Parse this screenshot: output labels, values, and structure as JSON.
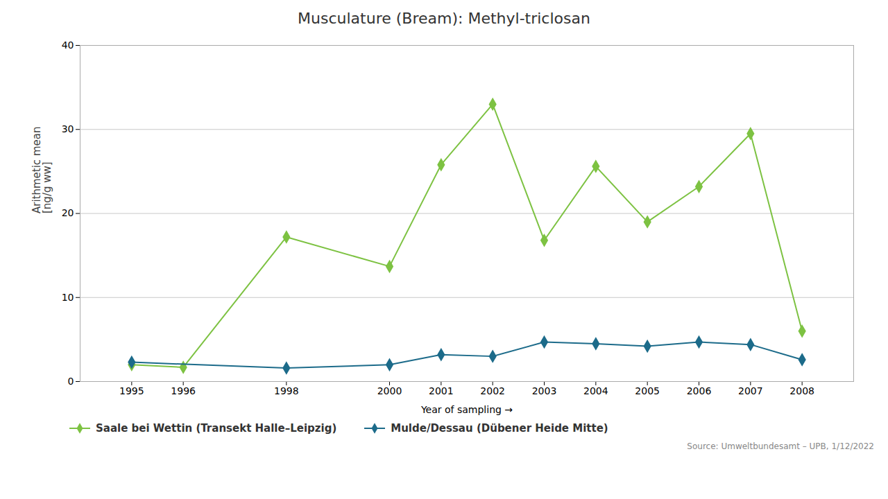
{
  "chart_data": {
    "type": "line",
    "title": "Musculature (Bream): Methyl-triclosan",
    "xlabel": "Year of sampling",
    "ylabel": "Arithmetic mean\n[ng/g ww]",
    "annotations": [
      "Source: Umweltbundesamt – UPB, 1/12/2022"
    ],
    "series": [
      {
        "name": "Saale bei Wettin (Transekt Halle–Leipzig)",
        "color": "#7dc242",
        "marker": "diamond",
        "x": [
          1995,
          1996,
          1998,
          2000,
          2001,
          2002,
          2003,
          2004,
          2005,
          2006,
          2007,
          2008
        ],
        "values": [
          2.0,
          1.7,
          17.2,
          13.7,
          25.8,
          33.0,
          16.8,
          25.6,
          19.0,
          23.2,
          29.5,
          6.0
        ]
      },
      {
        "name": "Mulde/Dessau (Dübener Heide Mitte)",
        "color": "#1c6b8a",
        "marker": "diamond",
        "x": [
          1995,
          1998,
          2000,
          2001,
          2002,
          2003,
          2004,
          2005,
          2006,
          2007,
          2008
        ],
        "values": [
          2.3,
          1.6,
          2.0,
          3.2,
          3.0,
          4.7,
          4.5,
          4.2,
          4.7,
          4.4,
          2.6
        ]
      }
    ],
    "xlim": [
      1994,
      2009
    ],
    "xticks": [
      1995,
      1996,
      1998,
      2000,
      2001,
      2002,
      2003,
      2004,
      2005,
      2006,
      2007,
      2008
    ],
    "ylim": [
      0,
      40
    ],
    "yticks": [
      0,
      10,
      20,
      30,
      40
    ],
    "grid": true,
    "legend": "bottom"
  }
}
